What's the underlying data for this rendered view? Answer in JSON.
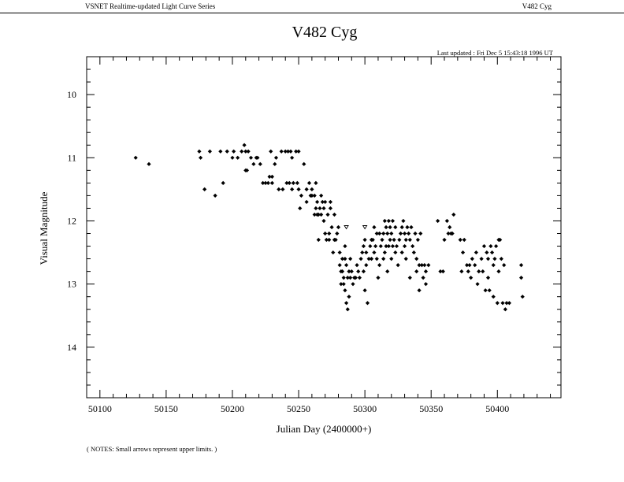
{
  "header": {
    "left": "VSNET Realtime-updated Light Curve Series",
    "right": "V482 Cyg"
  },
  "chart_data": {
    "type": "scatter",
    "title": "V482 Cyg",
    "updated": "Last updated : Fri Dec 5 15:43:18 1996 UT",
    "xlabel": "Julian Day (2400000+)",
    "ylabel": "Visual Magnitude",
    "note": "( NOTES: Small arrows represent upper limits. )",
    "xlim": [
      50090,
      50448
    ],
    "ylim": [
      14.8,
      9.4
    ],
    "y_inverted": true,
    "xticks": [
      50100,
      50150,
      50200,
      50250,
      50300,
      50350,
      50400
    ],
    "xtick_labels": [
      "50100",
      "50150",
      "50200",
      "50250",
      "50300",
      "50350",
      "50400"
    ],
    "yticks": [
      10,
      11,
      12,
      13,
      14
    ],
    "ytick_labels": [
      "10",
      "11",
      "12",
      "13",
      "14"
    ],
    "grid": false,
    "marker": "diamond",
    "series": [
      {
        "name": "",
        "points": [
          [
            50127,
            11.0
          ],
          [
            50137,
            11.1
          ],
          [
            50175,
            10.9
          ],
          [
            50176,
            11.0
          ],
          [
            50179,
            11.5
          ],
          [
            50183,
            10.9
          ],
          [
            50187,
            11.6
          ],
          [
            50191,
            10.9
          ],
          [
            50193,
            11.4
          ],
          [
            50196,
            10.9
          ],
          [
            50200,
            11.0
          ],
          [
            50201,
            10.9
          ],
          [
            50204,
            11.0
          ],
          [
            50207,
            10.9
          ],
          [
            50209,
            10.8
          ],
          [
            50210,
            10.9
          ],
          [
            50210,
            11.2
          ],
          [
            50211,
            11.2
          ],
          [
            50212,
            10.9
          ],
          [
            50214,
            11.0
          ],
          [
            50216,
            11.1
          ],
          [
            50218,
            11.0
          ],
          [
            50219,
            11.0
          ],
          [
            50221,
            11.1
          ],
          [
            50223,
            11.4
          ],
          [
            50225,
            11.4
          ],
          [
            50227,
            11.4
          ],
          [
            50228,
            11.3
          ],
          [
            50229,
            10.9
          ],
          [
            50230,
            11.4
          ],
          [
            50230,
            11.3
          ],
          [
            50232,
            11.1
          ],
          [
            50233,
            11.0
          ],
          [
            50235,
            11.5
          ],
          [
            50237,
            10.9
          ],
          [
            50238,
            11.5
          ],
          [
            50240,
            10.9
          ],
          [
            50241,
            11.4
          ],
          [
            50242,
            10.9
          ],
          [
            50243,
            11.4
          ],
          [
            50244,
            10.9
          ],
          [
            50245,
            11.0
          ],
          [
            50245,
            11.5
          ],
          [
            50246,
            11.4
          ],
          [
            50248,
            10.9
          ],
          [
            50249,
            11.4
          ],
          [
            50250,
            11.5
          ],
          [
            50250,
            10.9
          ],
          [
            50251,
            11.8
          ],
          [
            50252,
            11.6
          ],
          [
            50254,
            11.1
          ],
          [
            50256,
            11.5
          ],
          [
            50256,
            11.7
          ],
          [
            50258,
            11.4
          ],
          [
            50259,
            11.6
          ],
          [
            50260,
            11.6
          ],
          [
            50260,
            11.5
          ],
          [
            50262,
            11.6
          ],
          [
            50262,
            11.9
          ],
          [
            50263,
            11.4
          ],
          [
            50263,
            11.8
          ],
          [
            50264,
            11.9
          ],
          [
            50264,
            11.7
          ],
          [
            50265,
            12.3
          ],
          [
            50265,
            11.9
          ],
          [
            50266,
            11.8
          ],
          [
            50267,
            11.6
          ],
          [
            50267,
            11.9
          ],
          [
            50268,
            11.7
          ],
          [
            50269,
            11.8
          ],
          [
            50269,
            12.0
          ],
          [
            50270,
            11.7
          ],
          [
            50270,
            12.2
          ],
          [
            50271,
            12.3
          ],
          [
            50272,
            11.9
          ],
          [
            50273,
            12.2
          ],
          [
            50273,
            12.3
          ],
          [
            50274,
            11.7
          ],
          [
            50274,
            11.8
          ],
          [
            50275,
            12.1
          ],
          [
            50276,
            12.5
          ],
          [
            50277,
            12.3
          ],
          [
            50277,
            11.9
          ],
          [
            50278,
            12.3
          ],
          [
            50279,
            12.2
          ],
          [
            50280,
            12.1
          ],
          [
            50281,
            12.5
          ],
          [
            50281,
            12.7
          ],
          [
            50282,
            13.0
          ],
          [
            50282,
            12.8
          ],
          [
            50283,
            12.6
          ],
          [
            50283,
            12.8
          ],
          [
            50284,
            12.9
          ],
          [
            50284,
            13.0
          ],
          [
            50285,
            12.4
          ],
          [
            50285,
            12.6
          ],
          [
            50285,
            13.1
          ],
          [
            50286,
            12.7
          ],
          [
            50286,
            13.3
          ],
          [
            50287,
            13.4
          ],
          [
            50287,
            12.9
          ],
          [
            50288,
            13.2
          ],
          [
            50288,
            12.8
          ],
          [
            50289,
            12.6
          ],
          [
            50289,
            12.9
          ],
          [
            50290,
            12.8
          ],
          [
            50291,
            13.0
          ],
          [
            50292,
            12.9
          ],
          [
            50293,
            12.9
          ],
          [
            50294,
            12.7
          ],
          [
            50295,
            12.8
          ],
          [
            50296,
            12.9
          ],
          [
            50297,
            12.6
          ],
          [
            50298,
            12.5
          ],
          [
            50299,
            12.4
          ],
          [
            50299,
            12.8
          ],
          [
            50300,
            13.1
          ],
          [
            50300,
            12.3
          ],
          [
            50301,
            12.5
          ],
          [
            50301,
            12.7
          ],
          [
            50302,
            13.3
          ],
          [
            50303,
            12.6
          ],
          [
            50304,
            12.4
          ],
          [
            50305,
            12.6
          ],
          [
            50305,
            12.3
          ],
          [
            50306,
            12.3
          ],
          [
            50307,
            12.1
          ],
          [
            50307,
            12.5
          ],
          [
            50308,
            12.4
          ],
          [
            50309,
            12.2
          ],
          [
            50309,
            12.6
          ],
          [
            50310,
            12.9
          ],
          [
            50311,
            12.2
          ],
          [
            50311,
            12.7
          ],
          [
            50312,
            12.4
          ],
          [
            50313,
            12.3
          ],
          [
            50314,
            12.2
          ],
          [
            50314,
            12.6
          ],
          [
            50315,
            12.0
          ],
          [
            50315,
            12.5
          ],
          [
            50316,
            12.1
          ],
          [
            50316,
            12.4
          ],
          [
            50317,
            12.2
          ],
          [
            50317,
            12.8
          ],
          [
            50318,
            12.0
          ],
          [
            50318,
            12.4
          ],
          [
            50319,
            12.1
          ],
          [
            50319,
            12.3
          ],
          [
            50320,
            12.2
          ],
          [
            50320,
            12.6
          ],
          [
            50321,
            12.0
          ],
          [
            50321,
            12.4
          ],
          [
            50322,
            12.3
          ],
          [
            50323,
            12.1
          ],
          [
            50323,
            12.5
          ],
          [
            50324,
            12.4
          ],
          [
            50325,
            12.7
          ],
          [
            50326,
            12.3
          ],
          [
            50327,
            12.2
          ],
          [
            50328,
            12.1
          ],
          [
            50328,
            12.5
          ],
          [
            50329,
            12.0
          ],
          [
            50330,
            12.2
          ],
          [
            50330,
            12.4
          ],
          [
            50331,
            12.3
          ],
          [
            50331,
            12.6
          ],
          [
            50332,
            12.1
          ],
          [
            50333,
            12.2
          ],
          [
            50334,
            12.3
          ],
          [
            50334,
            12.9
          ],
          [
            50335,
            12.1
          ],
          [
            50336,
            12.4
          ],
          [
            50337,
            12.5
          ],
          [
            50338,
            12.2
          ],
          [
            50339,
            12.6
          ],
          [
            50339,
            12.8
          ],
          [
            50340,
            12.3
          ],
          [
            50341,
            12.7
          ],
          [
            50341,
            13.1
          ],
          [
            50342,
            12.2
          ],
          [
            50343,
            12.7
          ],
          [
            50344,
            12.9
          ],
          [
            50345,
            12.7
          ],
          [
            50346,
            12.8
          ],
          [
            50346,
            13.0
          ],
          [
            50348,
            12.7
          ],
          [
            50355,
            12.0
          ],
          [
            50357,
            12.8
          ],
          [
            50359,
            12.8
          ],
          [
            50360,
            12.3
          ],
          [
            50362,
            12.0
          ],
          [
            50363,
            12.2
          ],
          [
            50364,
            12.1
          ],
          [
            50365,
            12.2
          ],
          [
            50366,
            12.2
          ],
          [
            50367,
            11.9
          ],
          [
            50372,
            12.3
          ],
          [
            50373,
            12.8
          ],
          [
            50374,
            12.5
          ],
          [
            50375,
            12.3
          ],
          [
            50377,
            12.7
          ],
          [
            50378,
            12.8
          ],
          [
            50379,
            12.7
          ],
          [
            50380,
            12.9
          ],
          [
            50381,
            12.6
          ],
          [
            50383,
            12.7
          ],
          [
            50384,
            12.5
          ],
          [
            50385,
            13.0
          ],
          [
            50386,
            12.8
          ],
          [
            50388,
            12.6
          ],
          [
            50389,
            12.8
          ],
          [
            50390,
            12.4
          ],
          [
            50391,
            13.1
          ],
          [
            50392,
            12.5
          ],
          [
            50393,
            12.6
          ],
          [
            50393,
            12.9
          ],
          [
            50394,
            13.1
          ],
          [
            50395,
            12.4
          ],
          [
            50396,
            12.5
          ],
          [
            50397,
            12.7
          ],
          [
            50397,
            13.2
          ],
          [
            50398,
            12.6
          ],
          [
            50399,
            12.4
          ],
          [
            50400,
            13.3
          ],
          [
            50401,
            12.3
          ],
          [
            50401,
            12.8
          ],
          [
            50402,
            12.3
          ],
          [
            50403,
            12.6
          ],
          [
            50404,
            13.3
          ],
          [
            50405,
            12.7
          ],
          [
            50406,
            13.4
          ],
          [
            50407,
            13.3
          ],
          [
            50409,
            13.3
          ],
          [
            50418,
            12.7
          ],
          [
            50418,
            12.9
          ],
          [
            50419,
            13.2
          ]
        ]
      },
      {
        "name": "",
        "marker": "upper-limit-arrow",
        "points": [
          [
            50286,
            12.1
          ],
          [
            50300,
            12.1
          ]
        ]
      }
    ]
  }
}
